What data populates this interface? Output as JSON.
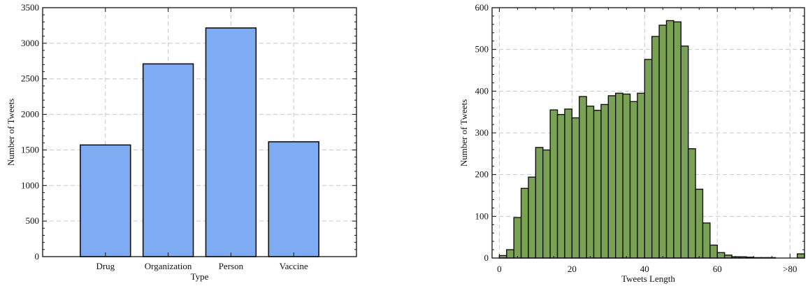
{
  "chart_data": [
    {
      "type": "bar",
      "title": "",
      "xlabel": "Type",
      "ylabel": "Number of Tweets",
      "categories": [
        "Drug",
        "Organization",
        "Person",
        "Vaccine"
      ],
      "values": [
        1570,
        2710,
        3215,
        1615
      ],
      "ylim": [
        0,
        3500
      ],
      "yticks": [
        "0",
        "500",
        "1000",
        "1500",
        "2000",
        "2500",
        "3000",
        "3500"
      ],
      "grid": true,
      "bar_color": "#7fabf2"
    },
    {
      "type": "bar",
      "title": "",
      "xlabel": "Tweets Length",
      "ylabel": "Number of Tweets",
      "bin_width": 2,
      "x_start": 0,
      "values": [
        6,
        20,
        97,
        167,
        194,
        265,
        259,
        355,
        344,
        357,
        336,
        387,
        364,
        354,
        368,
        389,
        395,
        393,
        375,
        395,
        476,
        531,
        558,
        569,
        566,
        508,
        262,
        165,
        84,
        31,
        13,
        7,
        3,
        3,
        2,
        1,
        1,
        1,
        0,
        0,
        0,
        10
      ],
      "xlim": [
        -2,
        84
      ],
      "ylim": [
        0,
        600
      ],
      "xticks": [
        "0",
        "20",
        "40",
        "60",
        ">80"
      ],
      "yticks": [
        "0",
        "100",
        "200",
        "300",
        "400",
        "500",
        "600"
      ],
      "grid": true,
      "bar_color": "#7aa254"
    }
  ]
}
